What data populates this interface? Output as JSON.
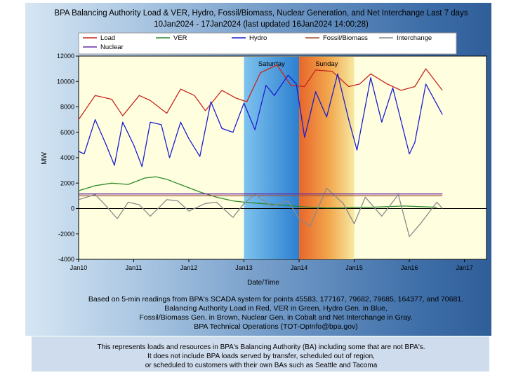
{
  "chart_data": {
    "type": "line",
    "title": "BPA Balancing Authority Load & VER, Hydro, Fossil/Biomass, Nuclear Generation, and Net Interchange Last 7 days",
    "subtitle": "10Jan2024 - 17Jan2024 (last updated 16Jan2024 14:00:28)",
    "xlabel": "Date/Time",
    "ylabel": "MW",
    "ylim": [
      -4000,
      12000
    ],
    "yticks": [
      "-4000",
      "-2000",
      "0",
      "2000",
      "4000",
      "6000",
      "8000",
      "10000",
      "12000"
    ],
    "xticks": [
      "Jan10",
      "Jan11",
      "Jan12",
      "Jan13",
      "Jan14",
      "Jan15",
      "Jan16",
      "Jan17"
    ],
    "grid": false,
    "legend_position": "top",
    "weekend_labels": [
      "Saturday",
      "Sunday"
    ],
    "x_unit": "days since Jan10 00:00",
    "series": [
      {
        "name": "Load",
        "color": "#c8261e",
        "x": [
          0,
          0.3,
          0.6,
          0.8,
          1.1,
          1.3,
          1.6,
          1.85,
          2.1,
          2.3,
          2.6,
          2.85,
          3.05,
          3.3,
          3.6,
          3.85,
          4.1,
          4.3,
          4.6,
          4.9,
          5.1,
          5.3,
          5.6,
          5.85,
          6.1,
          6.3,
          6.6
        ],
        "values": [
          7000,
          8900,
          8600,
          7300,
          8900,
          8500,
          7500,
          9400,
          8900,
          7700,
          9300,
          8700,
          8400,
          10700,
          11300,
          9700,
          9600,
          10900,
          10800,
          9600,
          9800,
          10600,
          9800,
          9300,
          9600,
          11000,
          9300
        ]
      },
      {
        "name": "VER",
        "color": "#2e8a2a",
        "x": [
          0,
          0.3,
          0.6,
          0.9,
          1.2,
          1.4,
          1.6,
          1.9,
          2.2,
          2.5,
          2.8,
          3.0,
          3.3,
          3.6,
          3.9,
          4.2,
          4.5,
          4.8,
          5.0,
          5.3,
          5.6,
          5.9,
          6.2,
          6.5
        ],
        "values": [
          1400,
          1800,
          2000,
          1900,
          2400,
          2500,
          2300,
          1800,
          1300,
          900,
          600,
          500,
          400,
          300,
          200,
          100,
          50,
          50,
          100,
          100,
          150,
          200,
          150,
          100
        ]
      },
      {
        "name": "Hydro",
        "color": "#1c1ed0",
        "x": [
          0,
          0.1,
          0.3,
          0.5,
          0.65,
          0.8,
          1.0,
          1.15,
          1.3,
          1.5,
          1.65,
          1.85,
          2.0,
          2.2,
          2.4,
          2.6,
          2.8,
          3.0,
          3.2,
          3.4,
          3.55,
          3.8,
          3.95,
          4.1,
          4.3,
          4.5,
          4.7,
          4.9,
          5.05,
          5.3,
          5.5,
          5.7,
          6.0,
          6.1,
          6.3,
          6.6
        ],
        "values": [
          4500,
          4300,
          7000,
          5000,
          3400,
          6800,
          5000,
          3300,
          6800,
          6600,
          4000,
          6800,
          5500,
          4100,
          8400,
          6300,
          6000,
          8300,
          6200,
          9700,
          8900,
          10500,
          9800,
          5600,
          9200,
          7200,
          10600,
          7000,
          4600,
          10300,
          6800,
          9500,
          4300,
          5200,
          9800,
          7400
        ]
      },
      {
        "name": "Fossil/Biomass",
        "color": "#a0522d",
        "x": [
          0,
          1,
          2,
          3,
          4,
          5,
          6,
          6.6
        ],
        "values": [
          1000,
          1000,
          1000,
          1000,
          1000,
          1000,
          1000,
          1000
        ]
      },
      {
        "name": "Interchange",
        "color": "#8a8a8a",
        "x": [
          0,
          0.3,
          0.5,
          0.7,
          0.9,
          1.1,
          1.3,
          1.6,
          1.8,
          2.0,
          2.3,
          2.5,
          2.8,
          3.0,
          3.2,
          3.5,
          3.8,
          4.0,
          4.2,
          4.5,
          4.8,
          5.0,
          5.2,
          5.5,
          5.8,
          6.0,
          6.2,
          6.5,
          6.6
        ],
        "values": [
          700,
          1100,
          200,
          -800,
          500,
          300,
          -600,
          700,
          600,
          -200,
          400,
          500,
          -700,
          400,
          1100,
          200,
          600,
          -800,
          -1400,
          1600,
          400,
          -1200,
          900,
          -600,
          1100,
          -2200,
          -1200,
          500,
          0
        ]
      },
      {
        "name": "Nuclear",
        "color": "#6a2ea6",
        "x": [
          0,
          1,
          2,
          3,
          4,
          5,
          6,
          6.6
        ],
        "values": [
          1150,
          1150,
          1150,
          1150,
          1150,
          1150,
          1150,
          1150
        ]
      }
    ]
  },
  "notes": [
    "Based on 5-min readings from BPA's SCADA system for points 45583, 177167, 79682, 79685, 164377, and 70681.",
    "Balancing Authority Load in Red, VER in Green, Hydro Gen. in Blue,",
    "Fossil/Biomass Gen. in Brown, Nuclear Gen. in Cobalt and Net Interchange in Gray.",
    "BPA Technical Operations (TOT-OpInfo@bpa.gov)"
  ],
  "footer": [
    "This represents loads and resources in BPA's Balancing Authority (BA) including some that are not BPA's.",
    "It does not include BPA loads served by transfer, scheduled out of region,",
    "or scheduled to customers with their own BAs such as Seattle and Tacoma"
  ]
}
